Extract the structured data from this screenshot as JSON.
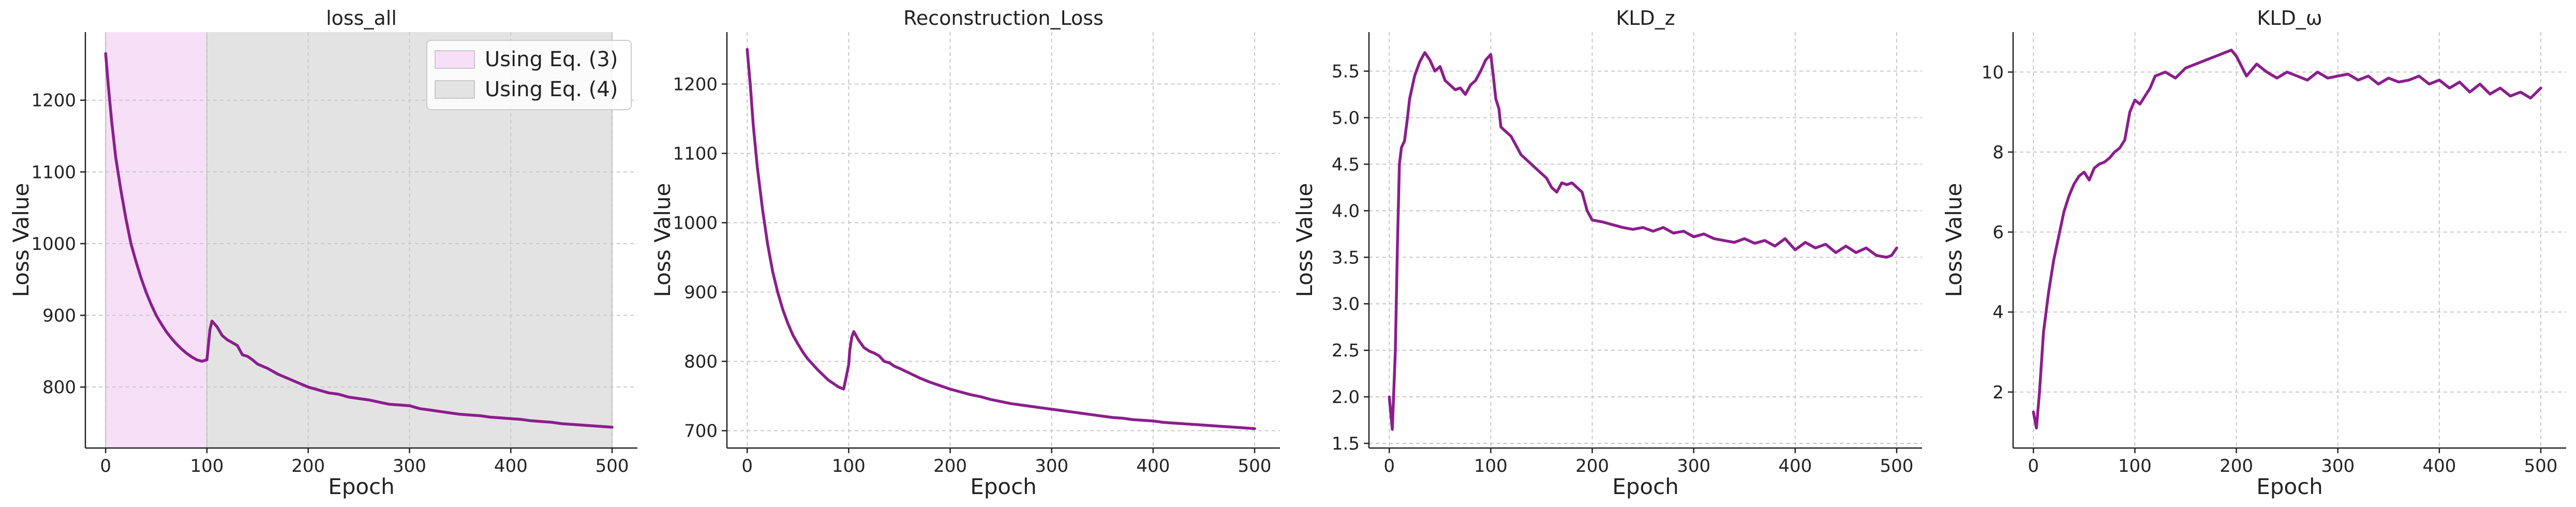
{
  "colors": {
    "line": "#8b1e8d",
    "eq3_region": "#f8dff8",
    "eq4_region": "#e3e3e3"
  },
  "chart_data": [
    {
      "type": "line",
      "title": "loss_all",
      "xlabel": "Epoch",
      "ylabel": "Loss Value",
      "xlim": [
        -20,
        525
      ],
      "ylim": [
        715,
        1295
      ],
      "xticks": [
        0,
        100,
        200,
        300,
        400,
        500
      ],
      "yticks": [
        800,
        900,
        1000,
        1100,
        1200
      ],
      "grid": true,
      "legend_position": "top-right",
      "shaded_regions": [
        {
          "label": "Using Eq. (3)",
          "x_range": [
            0,
            100
          ],
          "color": "#f8dff8"
        },
        {
          "label": "Using Eq. (4)",
          "x_range": [
            100,
            500
          ],
          "color": "#e3e3e3"
        }
      ],
      "series": [
        {
          "x": [
            0,
            3,
            6,
            10,
            15,
            20,
            25,
            30,
            35,
            40,
            45,
            50,
            55,
            60,
            65,
            70,
            75,
            80,
            85,
            90,
            95,
            100,
            101,
            103,
            105,
            110,
            115,
            120,
            125,
            130,
            135,
            140,
            145,
            150,
            160,
            170,
            180,
            190,
            200,
            210,
            220,
            230,
            240,
            250,
            260,
            270,
            280,
            290,
            300,
            310,
            320,
            330,
            340,
            350,
            360,
            370,
            380,
            390,
            400,
            410,
            420,
            430,
            440,
            450,
            460,
            470,
            480,
            490,
            500
          ],
          "y": [
            1265,
            1215,
            1170,
            1120,
            1075,
            1035,
            1000,
            975,
            952,
            932,
            915,
            900,
            888,
            877,
            868,
            860,
            853,
            847,
            842,
            838,
            836,
            838,
            852,
            880,
            892,
            884,
            872,
            866,
            862,
            858,
            845,
            843,
            838,
            832,
            826,
            818,
            812,
            806,
            800,
            796,
            792,
            790,
            786,
            784,
            782,
            779,
            776,
            775,
            774,
            770,
            768,
            766,
            764,
            762,
            761,
            760,
            758,
            757,
            756,
            755,
            753,
            752,
            751,
            749,
            748,
            747,
            746,
            745,
            744
          ]
        }
      ]
    },
    {
      "type": "line",
      "title": "Reconstruction_Loss",
      "xlabel": "Epoch",
      "ylabel": "Loss Value",
      "xlim": [
        -20,
        525
      ],
      "ylim": [
        675,
        1275
      ],
      "xticks": [
        0,
        100,
        200,
        300,
        400,
        500
      ],
      "yticks": [
        700,
        800,
        900,
        1000,
        1100,
        1200
      ],
      "grid": true,
      "series": [
        {
          "x": [
            0,
            3,
            6,
            10,
            15,
            20,
            25,
            30,
            35,
            40,
            45,
            50,
            55,
            60,
            65,
            70,
            75,
            80,
            85,
            90,
            95,
            100,
            101,
            103,
            105,
            110,
            115,
            120,
            125,
            130,
            135,
            140,
            145,
            150,
            160,
            170,
            180,
            190,
            200,
            210,
            220,
            230,
            240,
            250,
            260,
            270,
            280,
            290,
            300,
            310,
            320,
            330,
            340,
            350,
            360,
            370,
            380,
            390,
            400,
            410,
            420,
            430,
            440,
            450,
            460,
            470,
            480,
            490,
            500
          ],
          "y": [
            1250,
            1200,
            1140,
            1080,
            1020,
            970,
            930,
            900,
            875,
            855,
            838,
            825,
            813,
            803,
            795,
            787,
            780,
            773,
            768,
            763,
            760,
            795,
            815,
            835,
            843,
            830,
            820,
            815,
            812,
            808,
            800,
            798,
            793,
            790,
            783,
            776,
            770,
            765,
            760,
            756,
            752,
            749,
            745,
            742,
            739,
            737,
            735,
            733,
            731,
            729,
            727,
            725,
            723,
            721,
            719,
            718,
            716,
            715,
            714,
            712,
            711,
            710,
            709,
            708,
            707,
            706,
            705,
            704,
            703
          ]
        }
      ]
    },
    {
      "type": "line",
      "title": "KLD_z",
      "xlabel": "Epoch",
      "ylabel": "Loss Value",
      "xlim": [
        -20,
        525
      ],
      "ylim": [
        1.45,
        5.92
      ],
      "xticks": [
        0,
        100,
        200,
        300,
        400,
        500
      ],
      "yticks": [
        1.5,
        2.0,
        2.5,
        3.0,
        3.5,
        4.0,
        4.5,
        5.0,
        5.5
      ],
      "grid": true,
      "series": [
        {
          "x": [
            0,
            3,
            6,
            8,
            10,
            12,
            15,
            18,
            20,
            25,
            30,
            35,
            40,
            45,
            50,
            55,
            60,
            65,
            70,
            75,
            80,
            85,
            90,
            95,
            100,
            102,
            105,
            108,
            110,
            115,
            120,
            125,
            130,
            135,
            140,
            145,
            150,
            155,
            160,
            165,
            170,
            175,
            180,
            185,
            190,
            195,
            200,
            210,
            220,
            230,
            240,
            250,
            260,
            270,
            280,
            290,
            300,
            310,
            320,
            330,
            340,
            350,
            360,
            370,
            380,
            390,
            400,
            410,
            420,
            430,
            440,
            450,
            460,
            470,
            480,
            490,
            495,
            500
          ],
          "y": [
            2.0,
            1.65,
            2.5,
            3.6,
            4.5,
            4.68,
            4.75,
            5.0,
            5.2,
            5.45,
            5.6,
            5.7,
            5.62,
            5.5,
            5.55,
            5.4,
            5.35,
            5.3,
            5.32,
            5.25,
            5.35,
            5.4,
            5.5,
            5.62,
            5.68,
            5.5,
            5.2,
            5.1,
            4.9,
            4.85,
            4.8,
            4.7,
            4.6,
            4.55,
            4.5,
            4.45,
            4.4,
            4.35,
            4.25,
            4.2,
            4.3,
            4.28,
            4.3,
            4.25,
            4.2,
            4.0,
            3.9,
            3.88,
            3.85,
            3.82,
            3.8,
            3.82,
            3.78,
            3.82,
            3.76,
            3.78,
            3.72,
            3.75,
            3.7,
            3.68,
            3.66,
            3.7,
            3.65,
            3.68,
            3.62,
            3.7,
            3.58,
            3.66,
            3.6,
            3.64,
            3.55,
            3.62,
            3.55,
            3.6,
            3.52,
            3.5,
            3.52,
            3.6
          ]
        }
      ]
    },
    {
      "type": "line",
      "title": "KLD_ω",
      "xlabel": "Epoch",
      "ylabel": "Loss Value",
      "xlim": [
        -20,
        525
      ],
      "ylim": [
        0.6,
        11.0
      ],
      "xticks": [
        0,
        100,
        200,
        300,
        400,
        500
      ],
      "yticks": [
        2,
        4,
        6,
        8,
        10
      ],
      "grid": true,
      "series": [
        {
          "x": [
            0,
            3,
            6,
            10,
            15,
            20,
            25,
            30,
            35,
            40,
            45,
            50,
            55,
            60,
            65,
            70,
            75,
            80,
            85,
            90,
            95,
            100,
            105,
            110,
            115,
            120,
            130,
            140,
            150,
            160,
            170,
            180,
            190,
            195,
            200,
            210,
            220,
            230,
            240,
            250,
            260,
            270,
            280,
            290,
            300,
            310,
            320,
            330,
            340,
            350,
            360,
            370,
            380,
            390,
            400,
            410,
            420,
            430,
            440,
            450,
            460,
            470,
            480,
            490,
            500
          ],
          "y": [
            1.5,
            1.1,
            2.0,
            3.5,
            4.5,
            5.3,
            5.9,
            6.5,
            6.9,
            7.2,
            7.4,
            7.5,
            7.3,
            7.6,
            7.7,
            7.75,
            7.85,
            8.0,
            8.1,
            8.3,
            9.0,
            9.3,
            9.2,
            9.4,
            9.6,
            9.9,
            10.0,
            9.85,
            10.1,
            10.2,
            10.3,
            10.4,
            10.5,
            10.55,
            10.4,
            9.9,
            10.2,
            10.0,
            9.85,
            10.0,
            9.9,
            9.8,
            10.0,
            9.85,
            9.9,
            9.95,
            9.8,
            9.9,
            9.7,
            9.85,
            9.75,
            9.8,
            9.9,
            9.7,
            9.8,
            9.6,
            9.75,
            9.5,
            9.7,
            9.45,
            9.6,
            9.4,
            9.5,
            9.35,
            9.6
          ]
        }
      ]
    }
  ]
}
